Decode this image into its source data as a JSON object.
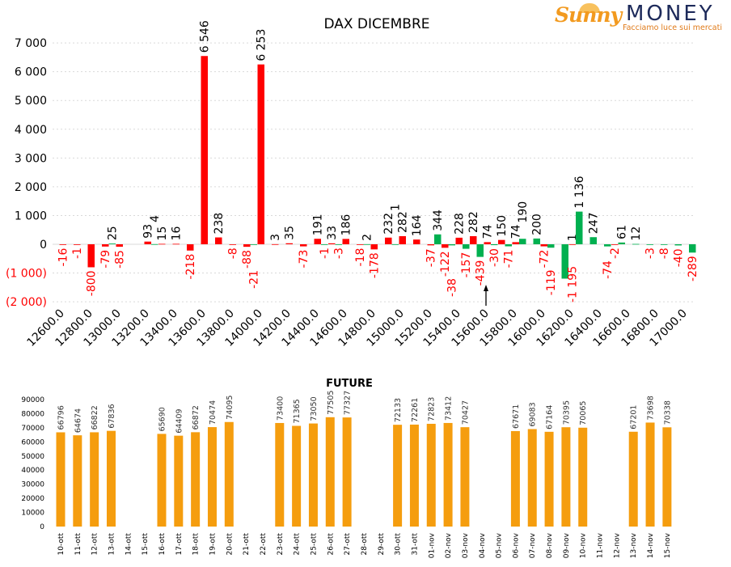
{
  "logo": {
    "brand_left": "Sunny",
    "brand_right": "MONEY",
    "tagline": "Facciamo luce sui mercati"
  },
  "colors": {
    "red": "#ff0000",
    "green": "#00b050",
    "orange": "#f59d0e",
    "annotation_arrow": "#000000"
  },
  "chart_data": [
    {
      "type": "bar",
      "title": "DAX DICEMBRE",
      "xlabel": "",
      "ylabel": "",
      "ylim": [
        -2000,
        7000
      ],
      "grid": true,
      "categories": [
        12600,
        12700,
        12800,
        12900,
        13000,
        13100,
        13200,
        13300,
        13400,
        13500,
        13600,
        13700,
        13800,
        13900,
        14000,
        14100,
        14200,
        14300,
        14400,
        14500,
        14600,
        14700,
        14800,
        14900,
        15000,
        15100,
        15200,
        15300,
        15400,
        15500,
        15600,
        15700,
        15800,
        15900,
        16000,
        16100,
        16200,
        16300,
        16400,
        16500,
        16600,
        16700,
        16800,
        16900,
        17000
      ],
      "x_tick_labels": [
        "12600.0",
        "12800.0",
        "13000.0",
        "13200.0",
        "13400.0",
        "13600.0",
        "13800.0",
        "14000.0",
        "14200.0",
        "14400.0",
        "14600.0",
        "14800.0",
        "15000.0",
        "15200.0",
        "15400.0",
        "15600.0",
        "15800.0",
        "16000.0",
        "16200.0",
        "16400.0",
        "16600.0",
        "16800.0",
        "17000.0"
      ],
      "y_tick_labels": [
        "7 000",
        "6 000",
        "5 000",
        "4 000",
        "3 000",
        "2 000",
        "1 000",
        "0",
        "(1 000)",
        "(2 000)"
      ],
      "series": [
        {
          "color": "#ff0000",
          "values": [
            -16,
            -1,
            -800,
            -79,
            -85,
            null,
            93,
            15,
            16,
            -218,
            6546,
            238,
            -8,
            -88,
            6253,
            3,
            35,
            -73,
            191,
            33,
            186,
            -18,
            -178,
            232,
            282,
            164,
            -37,
            -122,
            228,
            282,
            74,
            150,
            74,
            null,
            -72,
            null,
            1,
            null,
            null,
            -2,
            null,
            null,
            null,
            null,
            null
          ]
        },
        {
          "color": "#00b050",
          "values": [
            null,
            null,
            null,
            25,
            null,
            null,
            4,
            null,
            null,
            null,
            null,
            null,
            null,
            -21,
            null,
            null,
            null,
            null,
            -1,
            -3,
            null,
            2,
            null,
            1,
            null,
            null,
            344,
            -38,
            -157,
            -439,
            -30,
            -71,
            190,
            200,
            -119,
            -1195,
            1136,
            247,
            -74,
            61,
            12,
            -3,
            -8,
            -40,
            -289
          ]
        }
      ],
      "annotations": [
        {
          "type": "arrow",
          "x_category": 15600,
          "pointing": "up"
        }
      ]
    },
    {
      "type": "bar",
      "title": "FUTURE",
      "xlabel": "",
      "ylabel": "",
      "ylim": [
        0,
        90000
      ],
      "grid": false,
      "y_tick_labels": [
        "90000",
        "80000",
        "70000",
        "60000",
        "50000",
        "40000",
        "30000",
        "20000",
        "10000",
        "0"
      ],
      "categories": [
        "10-ott",
        "11-ott",
        "12-ott",
        "13-ott",
        "14-ott",
        "15-ott",
        "16-ott",
        "17-ott",
        "18-ott",
        "19-ott",
        "20-ott",
        "21-ott",
        "22-ott",
        "23-ott",
        "24-ott",
        "25-ott",
        "26-ott",
        "27-ott",
        "28-ott",
        "29-ott",
        "30-ott",
        "31-ott",
        "01-nov",
        "02-nov",
        "03-nov",
        "04-nov",
        "05-nov",
        "06-nov",
        "07-nov",
        "08-nov",
        "09-nov",
        "10-nov",
        "11-nov",
        "12-nov",
        "13-nov",
        "14-nov",
        "15-nov"
      ],
      "values": [
        66796,
        64674,
        66822,
        67836,
        null,
        null,
        65690,
        64409,
        66872,
        70474,
        74095,
        null,
        null,
        73400,
        71365,
        73050,
        77505,
        77327,
        null,
        null,
        72133,
        72261,
        72823,
        73412,
        70427,
        null,
        null,
        67671,
        69083,
        67164,
        70395,
        70065,
        null,
        null,
        67201,
        73698,
        70338
      ]
    }
  ]
}
